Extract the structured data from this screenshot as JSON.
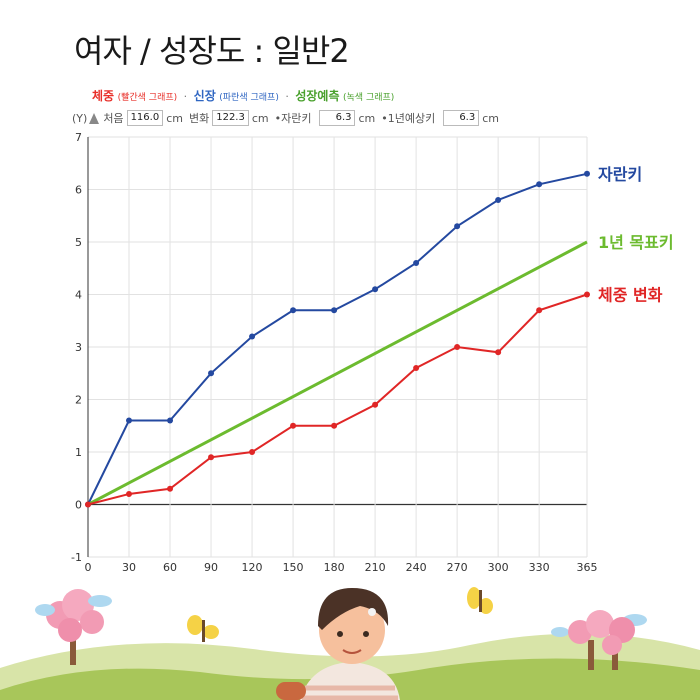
{
  "title": "여자 / 성장도 : 일반2",
  "legend_bar": {
    "weight": {
      "label": "체중",
      "note": "(빨간색 그래프)",
      "color": "#e8302a"
    },
    "sep1": "·",
    "height": {
      "label": "신장",
      "note": "(파란색 그래프)",
      "color": "#2f66c2"
    },
    "sep2": "·",
    "prediction": {
      "label": "성장예측",
      "note": "(녹색 그래프)",
      "color": "#4aa12d"
    }
  },
  "info_bar": {
    "y_label": "(Y)",
    "start_label": "처음",
    "start_value": "116.0",
    "start_unit": "cm",
    "change_label": "변화",
    "change_value": "122.3",
    "change_unit": "cm",
    "grow_label": "•자란키",
    "grow_value": "6.3",
    "grow_unit": "cm",
    "target_label": "•1년예상키",
    "target_value": "6.3",
    "target_unit": "cm"
  },
  "chart_data": {
    "type": "line",
    "x": [
      0,
      30,
      60,
      90,
      120,
      150,
      180,
      210,
      240,
      270,
      300,
      330,
      365
    ],
    "xticks": [
      "0",
      "30",
      "60",
      "90",
      "120",
      "150",
      "180",
      "210",
      "240",
      "270",
      "300",
      "330",
      "365"
    ],
    "yticks": [
      "-1",
      "0",
      "1",
      "2",
      "3",
      "4",
      "5",
      "6",
      "7"
    ],
    "ylim": [
      -1,
      7
    ],
    "xlim": [
      0,
      365
    ],
    "grid": true,
    "series": [
      {
        "name": "자란키",
        "color": "#2449a0",
        "markers": true,
        "x": [
          0,
          30,
          60,
          90,
          120,
          150,
          180,
          210,
          240,
          270,
          300,
          330,
          365
        ],
        "values": [
          0,
          1.6,
          1.6,
          2.5,
          3.2,
          3.7,
          3.7,
          4.1,
          4.6,
          5.3,
          5.8,
          6.1,
          6.3
        ]
      },
      {
        "name": "1년 목표키",
        "color": "#6cbb2f",
        "markers": false,
        "x": [
          0,
          365
        ],
        "values": [
          0,
          5.0
        ]
      },
      {
        "name": "체중 변화",
        "color": "#e02626",
        "markers": true,
        "x": [
          0,
          30,
          60,
          90,
          120,
          150,
          180,
          210,
          240,
          270,
          300,
          330,
          365
        ],
        "values": [
          0,
          0.2,
          0.3,
          0.9,
          1.0,
          1.5,
          1.5,
          1.9,
          2.6,
          3.0,
          2.9,
          3.7,
          4.0
        ]
      }
    ]
  }
}
